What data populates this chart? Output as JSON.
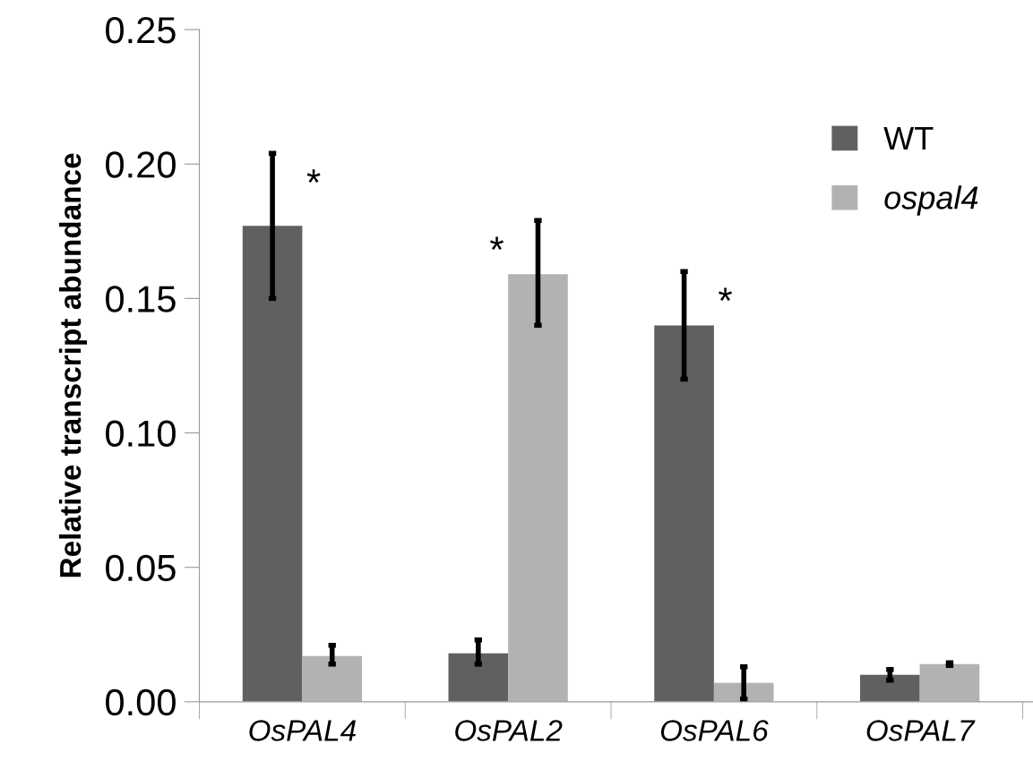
{
  "chart_data": {
    "type": "bar",
    "ylabel": "Relative transcript abundance",
    "categories": [
      "OsPAL4",
      "OsPAL2",
      "OsPAL6",
      "OsPAL7"
    ],
    "series": [
      {
        "name": "WT",
        "color": "#606060",
        "values": [
          0.177,
          0.018,
          0.14,
          0.01
        ],
        "errors": [
          [
            0.15,
            0.204
          ],
          [
            0.014,
            0.023
          ],
          [
            0.12,
            0.16
          ],
          [
            0.008,
            0.012
          ]
        ]
      },
      {
        "name": "ospal4",
        "color": "#b2b2b2",
        "values": [
          0.017,
          0.159,
          0.007,
          0.014
        ],
        "errors": [
          [
            0.014,
            0.021
          ],
          [
            0.14,
            0.179
          ],
          [
            0.001,
            0.013
          ],
          [
            0.0135,
            0.0145
          ]
        ]
      }
    ],
    "ylim": [
      0,
      0.25
    ],
    "yticks": [
      {
        "value": 0,
        "label": "0.00"
      },
      {
        "value": 0.05,
        "label": "0.05"
      },
      {
        "value": 0.1,
        "label": "0.10"
      },
      {
        "value": 0.15,
        "label": "0.15"
      },
      {
        "value": 0.2,
        "label": "0.20"
      },
      {
        "value": 0.25,
        "label": "0.25"
      }
    ],
    "annotations": [
      "*",
      "*",
      "*"
    ],
    "grid": false,
    "legend": "top right"
  }
}
